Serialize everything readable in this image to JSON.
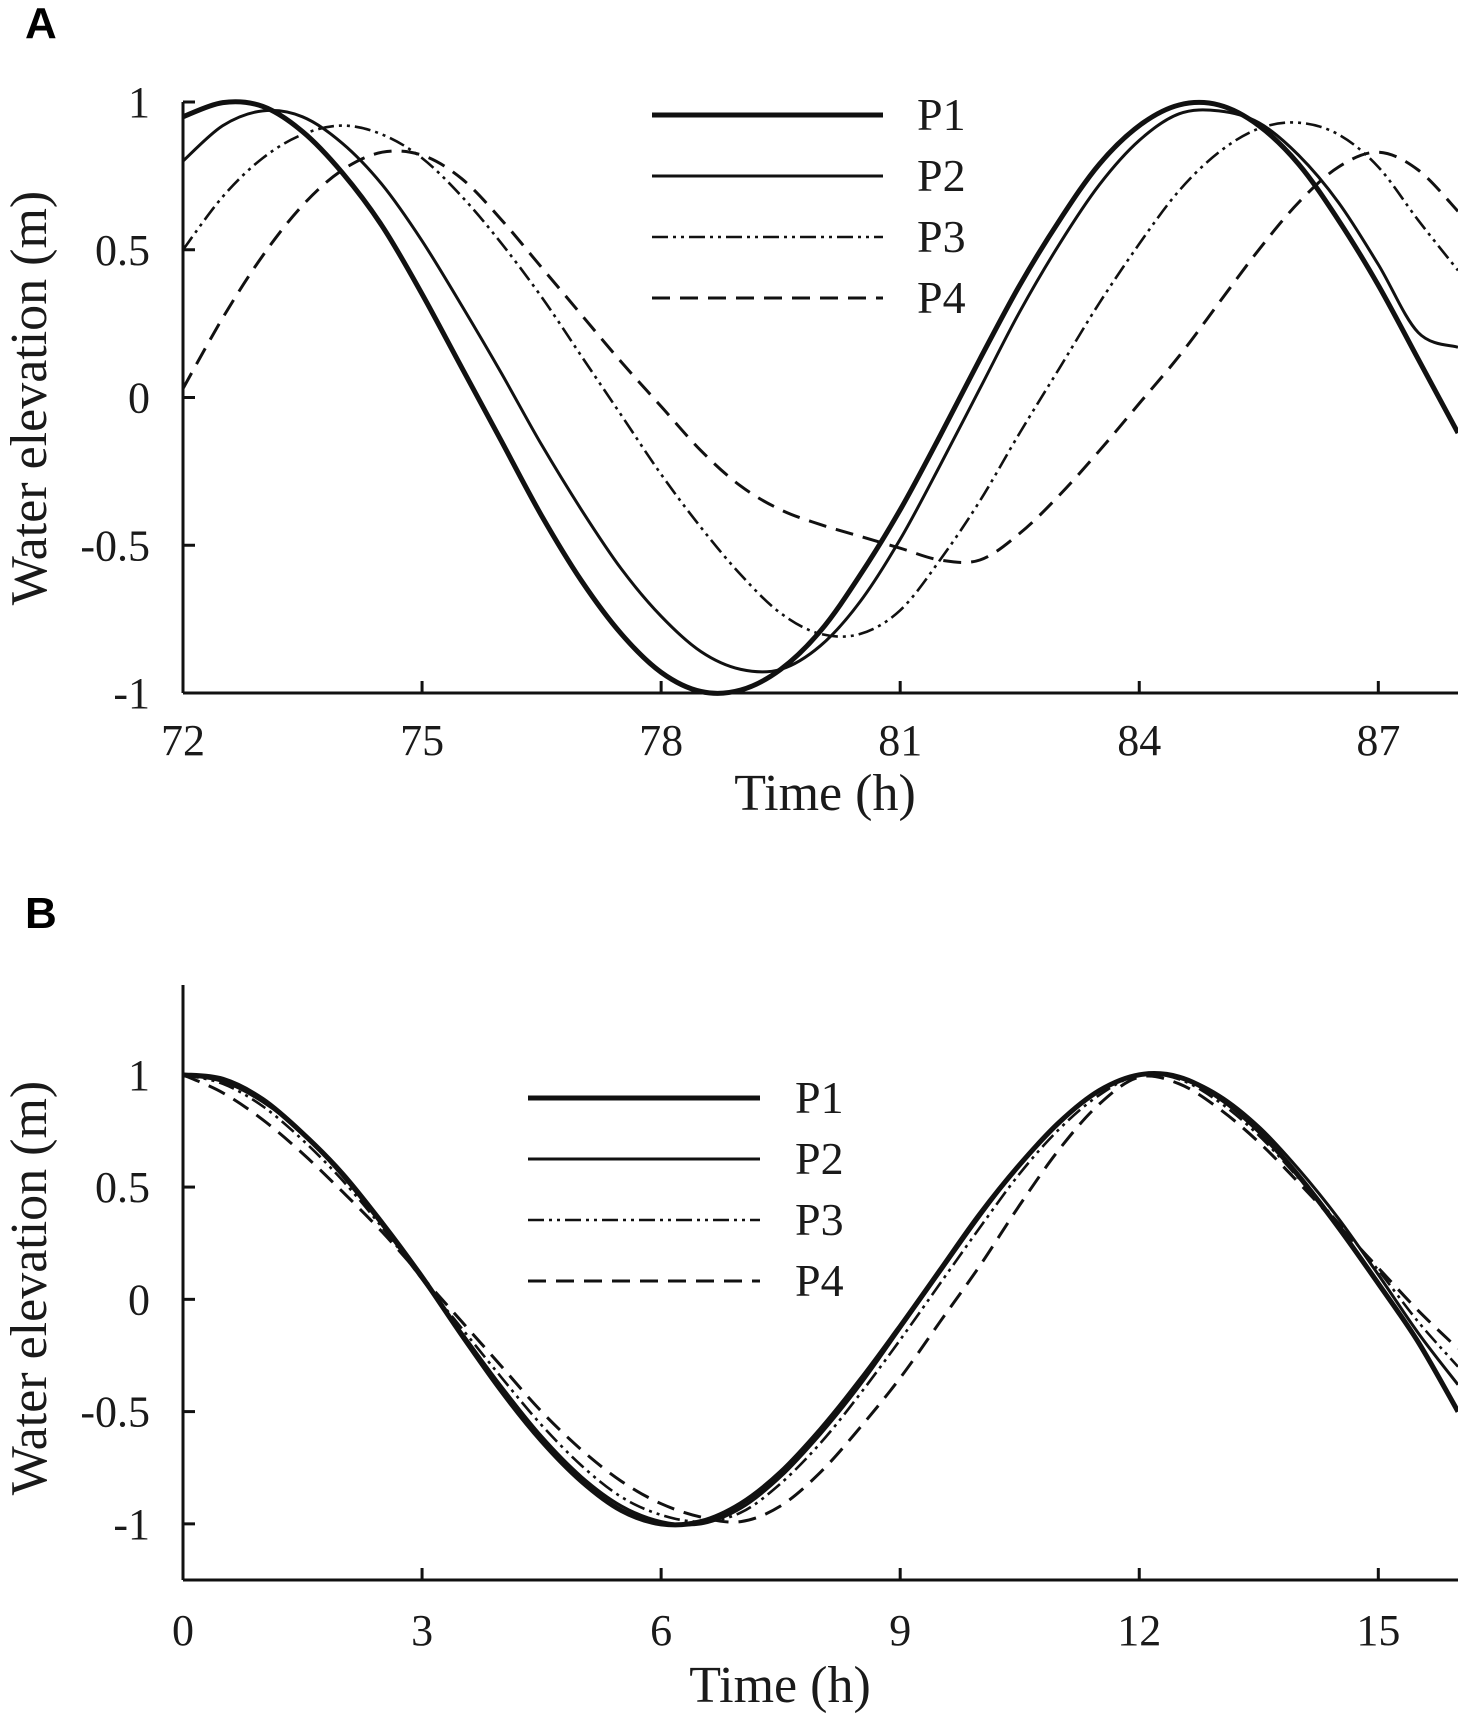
{
  "chart_data": [
    {
      "panel": "A",
      "type": "line",
      "title": "",
      "xlabel": "Time (h)",
      "ylabel": "Water elevation (m)",
      "xlim": [
        72,
        88
      ],
      "ylim": [
        -1,
        1
      ],
      "xticks": [
        72,
        75,
        78,
        81,
        84,
        87
      ],
      "xtick_labels": [
        "72",
        "75",
        "78",
        "81",
        "84",
        "87"
      ],
      "yticks": [
        -1,
        -0.5,
        0,
        0.5,
        1
      ],
      "ytick_labels": [
        "-1",
        "-0.5",
        "0",
        "0.5",
        "1"
      ],
      "grid": false,
      "legend_position": "top-center",
      "series": [
        {
          "name": "P1",
          "style": "thick-solid",
          "x": [
            72,
            72.5,
            73,
            73.5,
            74,
            74.5,
            75,
            75.5,
            76,
            76.5,
            77,
            77.5,
            78,
            78.5,
            79,
            79.5,
            80,
            80.5,
            81,
            81.5,
            82,
            82.5,
            83,
            83.5,
            84,
            84.5,
            85,
            85.5,
            86,
            86.5,
            87,
            87.5,
            88
          ],
          "y": [
            0.95,
            0.998,
            0.985,
            0.9,
            0.76,
            0.58,
            0.35,
            0.1,
            -0.15,
            -0.4,
            -0.62,
            -0.8,
            -0.93,
            -0.995,
            -0.99,
            -0.92,
            -0.79,
            -0.6,
            -0.38,
            -0.13,
            0.13,
            0.38,
            0.6,
            0.79,
            0.92,
            0.99,
            0.99,
            0.92,
            0.79,
            0.6,
            0.38,
            0.13,
            -0.12
          ]
        },
        {
          "name": "P2",
          "style": "solid",
          "x": [
            72,
            72.5,
            73,
            73.5,
            74,
            74.5,
            75,
            75.5,
            76,
            76.5,
            77,
            77.5,
            78,
            78.5,
            79,
            79.5,
            80,
            80.5,
            81,
            81.5,
            82,
            82.5,
            83,
            83.5,
            84,
            84.5,
            85,
            85.5,
            86,
            86.5,
            87,
            87.5,
            88
          ],
          "y": [
            0.8,
            0.92,
            0.97,
            0.95,
            0.86,
            0.72,
            0.53,
            0.31,
            0.08,
            -0.16,
            -0.38,
            -0.58,
            -0.74,
            -0.86,
            -0.92,
            -0.92,
            -0.84,
            -0.69,
            -0.48,
            -0.23,
            0.03,
            0.29,
            0.52,
            0.72,
            0.87,
            0.96,
            0.97,
            0.93,
            0.82,
            0.66,
            0.45,
            0.22,
            0.17
          ]
        },
        {
          "name": "P3",
          "style": "dash-dot-dot",
          "x": [
            72,
            72.5,
            73,
            73.5,
            74,
            74.5,
            75,
            75.5,
            76,
            76.5,
            77,
            77.5,
            78,
            78.5,
            79,
            79.5,
            80,
            80.5,
            81,
            81.5,
            82,
            82.5,
            83,
            83.5,
            84,
            84.5,
            85,
            85.5,
            86,
            86.5,
            87,
            87.5,
            88
          ],
          "y": [
            0.5,
            0.68,
            0.81,
            0.89,
            0.92,
            0.89,
            0.81,
            0.68,
            0.52,
            0.34,
            0.14,
            -0.06,
            -0.26,
            -0.44,
            -0.6,
            -0.73,
            -0.8,
            -0.8,
            -0.72,
            -0.55,
            -0.35,
            -0.12,
            0.1,
            0.32,
            0.52,
            0.7,
            0.83,
            0.91,
            0.93,
            0.89,
            0.78,
            0.6,
            0.43
          ]
        },
        {
          "name": "P4",
          "style": "dashed",
          "x": [
            72,
            72.5,
            73,
            73.5,
            74,
            74.5,
            75,
            75.5,
            76,
            76.5,
            77,
            77.5,
            78,
            78.5,
            79,
            79.5,
            80,
            80.5,
            81,
            81.5,
            82,
            82.5,
            83,
            83.5,
            84,
            84.5,
            85,
            85.5,
            86,
            86.5,
            87,
            87.5,
            88
          ],
          "y": [
            0.03,
            0.27,
            0.48,
            0.65,
            0.77,
            0.83,
            0.82,
            0.74,
            0.6,
            0.44,
            0.28,
            0.12,
            -0.03,
            -0.18,
            -0.3,
            -0.38,
            -0.43,
            -0.47,
            -0.51,
            -0.55,
            -0.55,
            -0.46,
            -0.33,
            -0.18,
            -0.02,
            0.14,
            0.32,
            0.5,
            0.66,
            0.78,
            0.83,
            0.77,
            0.63
          ]
        }
      ]
    },
    {
      "panel": "B",
      "type": "line",
      "title": "",
      "xlabel": "Time (h)",
      "ylabel": "Water elevation (m)",
      "xlim": [
        0,
        16
      ],
      "ylim": [
        -1.25,
        1.4
      ],
      "xticks": [
        0,
        3,
        6,
        9,
        12,
        15
      ],
      "xtick_labels": [
        "0",
        "3",
        "6",
        "9",
        "12",
        "15"
      ],
      "yticks": [
        -1,
        -0.5,
        0,
        0.5,
        1
      ],
      "ytick_labels": [
        "-1",
        "-0.5",
        "0",
        "0.5",
        "1"
      ],
      "grid": false,
      "legend_position": "top-center",
      "series": [
        {
          "name": "P1",
          "style": "thick-solid",
          "x": [
            0,
            0.5,
            1,
            1.5,
            2,
            2.5,
            3,
            3.5,
            4,
            4.5,
            5,
            5.5,
            6,
            6.5,
            7,
            7.5,
            8,
            8.5,
            9,
            9.5,
            10,
            10.5,
            11,
            11.5,
            12,
            12.5,
            13,
            13.5,
            14,
            14.5,
            15,
            15.5,
            16
          ],
          "y": [
            1,
            0.98,
            0.89,
            0.74,
            0.56,
            0.34,
            0.1,
            -0.16,
            -0.41,
            -0.63,
            -0.81,
            -0.94,
            -1.0,
            -0.99,
            -0.91,
            -0.77,
            -0.58,
            -0.36,
            -0.12,
            0.13,
            0.38,
            0.6,
            0.79,
            0.93,
            1.0,
            0.99,
            0.9,
            0.75,
            0.55,
            0.32,
            0.07,
            -0.19,
            -0.5
          ]
        },
        {
          "name": "P2",
          "style": "solid",
          "x": [
            0,
            0.5,
            1,
            1.5,
            2,
            2.5,
            3,
            3.5,
            4,
            4.5,
            5,
            5.5,
            6,
            6.5,
            7,
            7.5,
            8,
            8.5,
            9,
            9.5,
            10,
            10.5,
            11,
            11.5,
            12,
            12.5,
            13,
            13.5,
            14,
            14.5,
            15,
            15.5,
            16
          ],
          "y": [
            1,
            0.97,
            0.88,
            0.74,
            0.55,
            0.33,
            0.09,
            -0.15,
            -0.39,
            -0.61,
            -0.79,
            -0.92,
            -0.99,
            -1.0,
            -0.93,
            -0.79,
            -0.6,
            -0.38,
            -0.13,
            0.12,
            0.37,
            0.6,
            0.79,
            0.93,
            1.0,
            0.99,
            0.91,
            0.77,
            0.58,
            0.36,
            0.11,
            -0.15,
            -0.38
          ]
        },
        {
          "name": "P3",
          "style": "dash-dot-dot",
          "x": [
            0,
            0.5,
            1,
            1.5,
            2,
            2.5,
            3,
            3.5,
            4,
            4.5,
            5,
            5.5,
            6,
            6.5,
            7,
            7.5,
            8,
            8.5,
            9,
            9.5,
            10,
            10.5,
            11,
            11.5,
            12,
            12.5,
            13,
            13.5,
            14,
            14.5,
            15,
            15.5,
            16
          ],
          "y": [
            1,
            0.96,
            0.86,
            0.71,
            0.53,
            0.32,
            0.09,
            -0.13,
            -0.35,
            -0.56,
            -0.74,
            -0.88,
            -0.96,
            -0.99,
            -0.95,
            -0.82,
            -0.64,
            -0.42,
            -0.18,
            0.07,
            0.32,
            0.56,
            0.76,
            0.91,
            1.0,
            0.98,
            0.88,
            0.73,
            0.54,
            0.34,
            0.13,
            -0.1,
            -0.3
          ]
        },
        {
          "name": "P4",
          "style": "dashed",
          "x": [
            0,
            0.5,
            1,
            1.5,
            2,
            2.5,
            3,
            3.5,
            4,
            4.5,
            5,
            5.5,
            6,
            6.5,
            7,
            7.5,
            8,
            8.5,
            9,
            9.5,
            10,
            10.5,
            11,
            11.5,
            12,
            12.5,
            13,
            13.5,
            14,
            14.5,
            15,
            15.5,
            16
          ],
          "y": [
            1,
            0.92,
            0.8,
            0.65,
            0.48,
            0.3,
            0.1,
            -0.1,
            -0.3,
            -0.5,
            -0.67,
            -0.81,
            -0.91,
            -0.97,
            -0.99,
            -0.92,
            -0.77,
            -0.57,
            -0.35,
            -0.1,
            0.15,
            0.42,
            0.67,
            0.87,
            0.99,
            0.96,
            0.85,
            0.7,
            0.52,
            0.33,
            0.14,
            -0.05,
            -0.22
          ]
        }
      ]
    }
  ],
  "panels": [
    {
      "label": "A",
      "legend": [
        "P1",
        "P2",
        "P3",
        "P4"
      ]
    },
    {
      "label": "B",
      "legend": [
        "P1",
        "P2",
        "P3",
        "P4"
      ]
    }
  ]
}
